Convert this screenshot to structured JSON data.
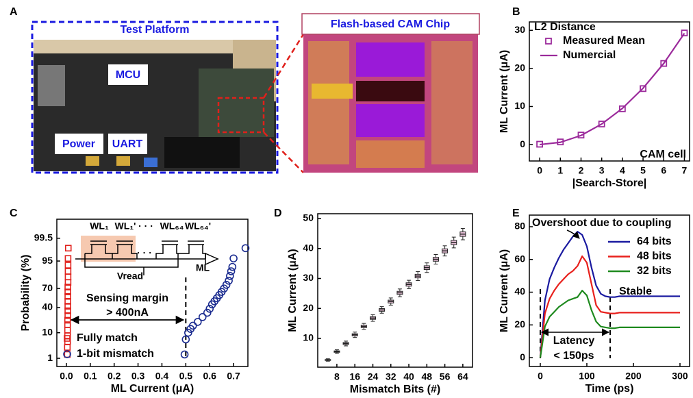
{
  "photo": {
    "panel": "A",
    "platform_title": "Test Platform",
    "labels": [
      "MCU",
      "Power",
      "UART"
    ],
    "chip_title": "Flash-based CAM Chip"
  },
  "chart_data": [
    {
      "type": "line",
      "panel": "B",
      "xlabel": "|Search-Store|",
      "ylabel": "ML Current (μA)",
      "x": [
        0,
        1,
        2,
        3,
        4,
        5,
        6,
        7
      ],
      "series": [
        {
          "name": "Measured Mean",
          "color": "#9b2a9b",
          "style": "markers",
          "values": [
            0.1,
            0.7,
            2.5,
            5.4,
            9.4,
            14.7,
            21.3,
            29.3
          ]
        },
        {
          "name": "Numercial",
          "color": "#9b2a9b",
          "style": "line",
          "values": [
            0,
            0.6,
            2.4,
            5.4,
            9.5,
            14.8,
            21.3,
            29.2
          ]
        }
      ],
      "xlim": [
        -0.5,
        7.25
      ],
      "ylim": [
        -4.3,
        32.2
      ],
      "xticks": [
        0,
        1,
        2,
        3,
        4,
        5,
        6,
        7
      ],
      "yticks": [
        0,
        10,
        20,
        30
      ],
      "legend_title": "L2 Distance",
      "legend": "upper left",
      "annotation": "CAM cell"
    },
    {
      "type": "scatter",
      "panel": "C",
      "xlabel": "ML Current (μA)",
      "ylabel": "Probability (%)",
      "yscale": "probit",
      "series": [
        {
          "name": "Fully match",
          "color": "#e0201b",
          "marker": "square",
          "x": [
            0.004,
            0.004,
            0.005,
            0.005,
            0.005,
            0.005,
            0.005,
            0.006,
            0.006,
            0.006,
            0.006,
            0.006,
            0.006,
            0.006,
            0.007,
            0.007,
            0.007,
            0.007,
            0.007,
            0.008
          ],
          "values": [
            1.5,
            3,
            5,
            8,
            12,
            17,
            22,
            28,
            35,
            42,
            50,
            58,
            65,
            72,
            78,
            84,
            89,
            93,
            96,
            98.5
          ]
        },
        {
          "name": "1-bit mismatch",
          "color": "#1a2b8f",
          "marker": "circle",
          "x": [
            0.495,
            0.5,
            0.51,
            0.52,
            0.53,
            0.55,
            0.57,
            0.59,
            0.6,
            0.61,
            0.62,
            0.63,
            0.64,
            0.65,
            0.66,
            0.67,
            0.68,
            0.685,
            0.69,
            0.695,
            0.7,
            0.75
          ],
          "values": [
            1.5,
            6,
            10,
            13,
            16,
            20,
            26,
            32,
            38,
            45,
            50,
            55,
            60,
            65,
            70,
            75,
            80,
            85,
            89,
            92,
            96,
            98.5
          ]
        }
      ],
      "xlim": [
        -0.04,
        0.76
      ],
      "ylim": [
        0.39,
        99.96
      ],
      "xticks": [
        {
          "value": 0,
          "label": "0.0"
        },
        0.1,
        0.2,
        0.3,
        0.4,
        0.5,
        0.6,
        0.7
      ],
      "yticks": [
        1,
        10,
        40,
        70,
        95,
        99.5
      ],
      "legend": "lower left",
      "vlines": [
        0.5
      ],
      "annotations": [
        "Sensing margin",
        "> 400nA"
      ],
      "inset_labels": [
        "WL₁",
        "WL₁'",
        "· · ·",
        "WL₆₄",
        "WL₆₄'",
        "Vread",
        "ML"
      ]
    },
    {
      "type": "box",
      "panel": "D",
      "xlabel": "Mismatch Bits (#)",
      "ylabel": "ML Current (μA)",
      "color": "#e8c0d8",
      "x": [
        4,
        8,
        12,
        16,
        20,
        24,
        28,
        32,
        36,
        40,
        44,
        48,
        52,
        56,
        60,
        64
      ],
      "values": [
        2.8,
        5.6,
        8.3,
        11.2,
        14,
        16.8,
        19.5,
        22.3,
        25.2,
        28,
        30.8,
        33.6,
        36.4,
        39.2,
        42,
        44.8
      ],
      "errors": [
        0.4,
        0.6,
        0.8,
        0.9,
        1,
        1.1,
        1.1,
        1.2,
        1.3,
        1.4,
        1.5,
        1.6,
        1.6,
        1.7,
        1.8,
        1.9
      ],
      "xlim": [
        -0.5,
        68.3
      ],
      "ylim": [
        0.4,
        51.6
      ],
      "xticks": [
        8,
        16,
        24,
        32,
        40,
        48,
        56,
        64
      ],
      "yticks": [
        10,
        20,
        30,
        40,
        50
      ]
    },
    {
      "type": "line",
      "panel": "E",
      "xlabel": "Time (ps)",
      "ylabel": "ML Current (μA)",
      "x": [
        0,
        10,
        20,
        30,
        40,
        50,
        60,
        70,
        80,
        90,
        100,
        110,
        120,
        130,
        140,
        150,
        160,
        170,
        180,
        190,
        200,
        210,
        220,
        230,
        240,
        250,
        260,
        270,
        280,
        290,
        300
      ],
      "series": [
        {
          "name": "64 bits",
          "color": "#1a1aa0",
          "style": "line",
          "values": [
            0,
            35,
            48,
            55,
            61,
            66,
            70,
            74,
            77,
            75,
            68,
            55,
            44,
            39,
            37.5,
            37,
            37,
            37.5,
            37.5,
            37.5,
            37.5,
            37.5,
            37.5,
            37.5,
            37.5,
            37.5,
            37.5,
            37.5,
            37.5,
            37.5,
            37.5
          ]
        },
        {
          "name": "48 bits",
          "color": "#e8201c",
          "style": "line",
          "values": [
            0,
            27,
            36,
            41,
            45,
            48,
            51,
            53,
            56,
            62,
            58,
            45,
            32,
            28,
            27.5,
            27,
            27,
            27.5,
            27.5,
            27.5,
            27.5,
            27.5,
            27.5,
            27.5,
            27.5,
            27.5,
            27.5,
            27.5,
            27.5,
            27.5,
            27.5
          ]
        },
        {
          "name": "32 bits",
          "color": "#1f8a1f",
          "style": "line",
          "values": [
            0,
            19,
            25,
            28,
            31,
            33,
            35,
            36,
            37,
            41,
            38,
            29,
            22,
            19,
            18.5,
            18,
            18,
            18.5,
            18.5,
            18.5,
            18.5,
            18.5,
            18.5,
            18.5,
            18.5,
            18.5,
            18.5,
            18.5,
            18.5,
            18.5,
            18.5
          ]
        }
      ],
      "xlim": [
        -23.5,
        320.6
      ],
      "ylim": [
        -5.4,
        87.1
      ],
      "xticks": [
        0,
        100,
        200,
        300
      ],
      "yticks": [
        0,
        20,
        40,
        60,
        80
      ],
      "legend": "upper right",
      "vlines": [
        0,
        150
      ],
      "annotations": [
        "Overshoot due to coupling",
        "Stable",
        "Latency",
        "< 150ps"
      ]
    }
  ]
}
